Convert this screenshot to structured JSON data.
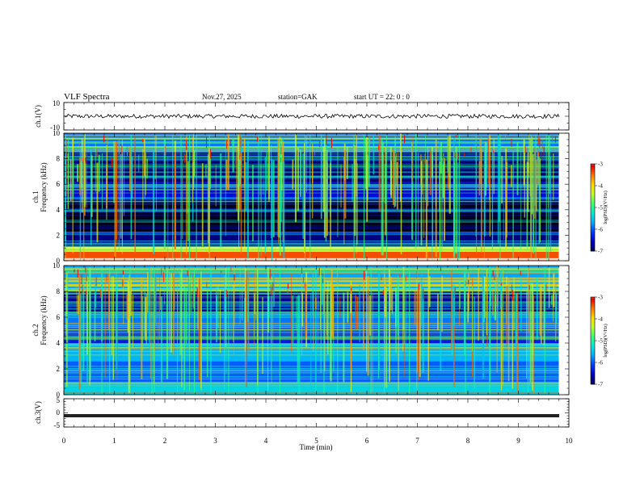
{
  "header": {
    "title": "VLF  Spectra",
    "date": "Nov.27, 2025",
    "station": "station=GAK",
    "start": "start  UT =   22: 0  : 0"
  },
  "chart_data": [
    {
      "type": "line",
      "panel": "ch1-waveform",
      "ylabel": "ch.1(V)",
      "ylim": [
        -10,
        10
      ],
      "y_ticks": [
        "10",
        "-10"
      ],
      "description_values": {
        "baseline_V": 0,
        "noise_amplitude_V": 1.5
      }
    },
    {
      "type": "heatmap",
      "panel": "ch1-spectrogram",
      "ylabel_top": "ch.1",
      "ylabel": "Frequency  (kHz)",
      "ylim": [
        0,
        10
      ],
      "y_ticks": [
        "0",
        "2",
        "4",
        "6",
        "8",
        "10"
      ],
      "xlim": [
        0,
        10
      ],
      "data_end_min": 9.8,
      "colorbar": {
        "label": "log(PSD)(V²/Hz)",
        "range": [
          -7,
          -3
        ],
        "ticks": [
          "-3",
          "-4",
          "-5",
          "-6",
          "-7"
        ]
      },
      "bands": [
        {
          "from_khz": 0,
          "to_khz": 0.7,
          "level": 0.85
        },
        {
          "from_khz": 0.7,
          "to_khz": 1.1,
          "level": 0.62
        },
        {
          "from_khz": 1.1,
          "to_khz": 2.2,
          "level": 0.12
        },
        {
          "from_khz": 2.2,
          "to_khz": 4.9,
          "level": 0.03
        },
        {
          "from_khz": 4.9,
          "to_khz": 6.2,
          "level": 0.2
        },
        {
          "from_khz": 6.2,
          "to_khz": 8.5,
          "level": 0.1
        },
        {
          "from_khz": 8.5,
          "to_khz": 10,
          "level": 0.32
        }
      ]
    },
    {
      "type": "heatmap",
      "panel": "ch2-spectrogram",
      "ylabel_top": "ch.2",
      "ylabel": "Frequency  (kHz)",
      "ylim": [
        0,
        10
      ],
      "y_ticks": [
        "0",
        "2",
        "4",
        "6",
        "8",
        "10"
      ],
      "xlim": [
        0,
        10
      ],
      "data_end_min": 9.8,
      "colorbar": {
        "label": "log(PSD)(V²/Hz)",
        "range": [
          -7,
          -3
        ],
        "ticks": [
          "-3",
          "-4",
          "-5",
          "-6",
          "-7"
        ]
      },
      "bands": [
        {
          "from_khz": 0,
          "to_khz": 1.0,
          "level": 0.42
        },
        {
          "from_khz": 1.0,
          "to_khz": 2.6,
          "level": 0.3
        },
        {
          "from_khz": 2.6,
          "to_khz": 4.0,
          "level": 0.38
        },
        {
          "from_khz": 4.0,
          "to_khz": 5.2,
          "level": 0.22
        },
        {
          "from_khz": 5.2,
          "to_khz": 6.4,
          "level": 0.32
        },
        {
          "from_khz": 6.4,
          "to_khz": 8.0,
          "level": 0.14
        },
        {
          "from_khz": 8.0,
          "to_khz": 10,
          "level": 0.36
        }
      ]
    },
    {
      "type": "line",
      "panel": "ch3-waveform",
      "ylabel": "ch.3(V)",
      "ylim": [
        -5,
        5
      ],
      "y_ticks": [
        "5",
        "0",
        "-5"
      ],
      "xlabel": "Time  (min)",
      "x_ticks": [
        "0",
        "1",
        "2",
        "3",
        "4",
        "5",
        "6",
        "7",
        "8",
        "9",
        "10"
      ],
      "description_values": {
        "baseline_V": -1.0
      }
    }
  ]
}
